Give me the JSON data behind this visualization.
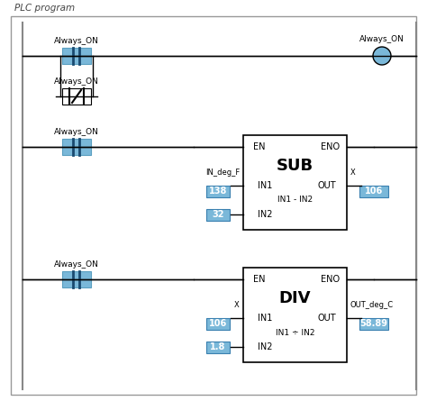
{
  "title": "PLC program",
  "bg_color": "#ffffff",
  "border_color": "#aaaaaa",
  "line_color": "#000000",
  "blue_fill": "#7ab8d9",
  "contact_label1": "Always_ON",
  "contact_label2": "Always_ON",
  "contact_label3": "Always_ON",
  "contact_label4": "Always_ON",
  "coil_label": "Always_ON",
  "sub_box": {
    "title": "SUB",
    "en": "EN",
    "eno": "ENO",
    "in1_label": "IN1",
    "in2_label": "IN2",
    "out_label": "OUT",
    "formula": "IN1 - IN2",
    "in1_var": "IN_deg_F",
    "in1_val": "138",
    "in2_val": "32",
    "out_var": "X",
    "out_val": "106"
  },
  "div_box": {
    "title": "DIV",
    "en": "EN",
    "eno": "ENO",
    "in1_label": "IN1",
    "in2_label": "IN2",
    "out_label": "OUT",
    "formula": "IN1 ÷ IN2",
    "in1_var": "X",
    "in1_val": "106",
    "in2_val": "1.8",
    "out_var": "OUT_deg_C",
    "out_val": "58.89"
  }
}
